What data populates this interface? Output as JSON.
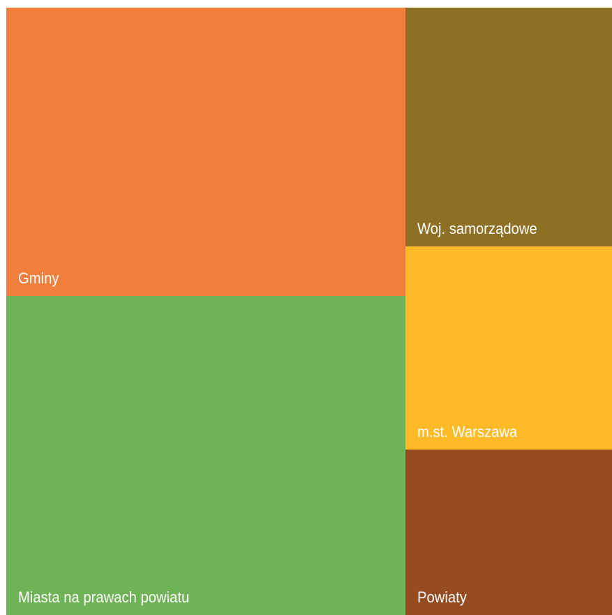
{
  "chart_data": {
    "type": "treemap",
    "items": [
      {
        "label": "Gminy",
        "value": 31.3,
        "color": "#F07F3C"
      },
      {
        "label": "Miasta na prawach powiatu",
        "value": 34.6,
        "color": "#6EB356"
      },
      {
        "label": "Woj. samorządowe",
        "value": 13.4,
        "color": "#8E7025"
      },
      {
        "label": "m.st. Warszawa",
        "value": 11.4,
        "color": "#FEBB27"
      },
      {
        "label": "Powiaty",
        "value": 9.3,
        "color": "#964B20"
      }
    ]
  }
}
